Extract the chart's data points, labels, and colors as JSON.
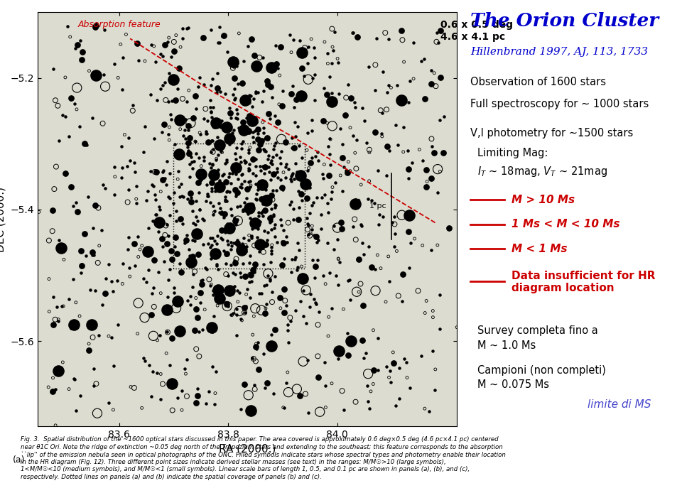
{
  "title": "The Orion Cluster",
  "subtitle": "Hillenbrand 1997, AJ, 113, 1733",
  "title_color": "#0000CC",
  "subtitle_color": "#0000CC",
  "obs_text": "Observation of 1600 stars",
  "spec_text": "Full spectroscopy for ~ 1000 stars",
  "phot_text": "V,I photometry for ~1500 stars",
  "lim_text1": "Limiting Mag:",
  "lim_text2": "I_T ~ 18mag, V_T ~ 21mag",
  "legend_m1": "M > 10 Ms",
  "legend_m2": "1 Ms < M < 10 Ms",
  "legend_m3": "M < 1 Ms",
  "legend_m4_line1": "Data insufficient for HR",
  "legend_m4_line2": "diagram location",
  "legend_color": "#CC0000",
  "survey_text1": "Survey completa fino a",
  "survey_text2": "M ~ 1.0 Ms",
  "campioni_text1": "Campioni (non completi)",
  "campioni_text2": "M ~ 0.075 Ms",
  "limite_text": "limite di MS",
  "limite_color": "#4444CC",
  "size_text1": "0.6 x 0.5 deg",
  "size_text2": "4.6 x 4.1 pc",
  "absorption_text": "Absorption feature",
  "absorption_color": "#CC0000",
  "scale_text": "1 pc",
  "xlabel": "RA (2000.)",
  "ylabel": "DEC (2000.)",
  "xlim_left": 84.22,
  "xlim_right": 83.45,
  "ylim_bottom": -5.73,
  "ylim_top": -5.1,
  "xticks": [
    84.0,
    83.8,
    83.6
  ],
  "yticks": [
    -5.2,
    -5.4,
    -5.6
  ],
  "plot_bg": "#DCDCD0",
  "seed": 42,
  "n_large": 55,
  "n_medium": 180,
  "n_small": 850,
  "n_open_large": 30,
  "n_open_medium": 80,
  "n_open_small": 160,
  "cluster_ra": 83.82,
  "cluster_dec": -5.385,
  "caption_text": "(a)",
  "fig_caption": "Fig. 3.  Spatial distribution of the ~1600 optical stars discussed in this paper. The area covered is approximately 0.6 deg×0.5 deg (4.6 pc×4.1 pc) centered\nnear θ1C Ori. Note the ridge of extinction ~0.05 deg north of the Trapezium stars and extending to the southeast; this feature corresponds to the absorption\n``lip'' of the emission nebula seen in optical photographs of the ONC. Filled symbols indicate stars whose spectral types and photometry enable their location\nin the HR diagram (Fig. 12). Three different point sizes indicate derived stellar masses (see text) in the ranges: M/M☉>10 (large symbols),\n1<M/M☉<10 (medium symbols), and M/M☉<1 (small symbols). Linear scale bars of length 1, 0.5, and 0.1 pc are shown in panels (a), (b), and (c),\nrespectively. Dotted lines on panels (a) and (b) indicate the spatial coverage of panels (b) and (c)."
}
